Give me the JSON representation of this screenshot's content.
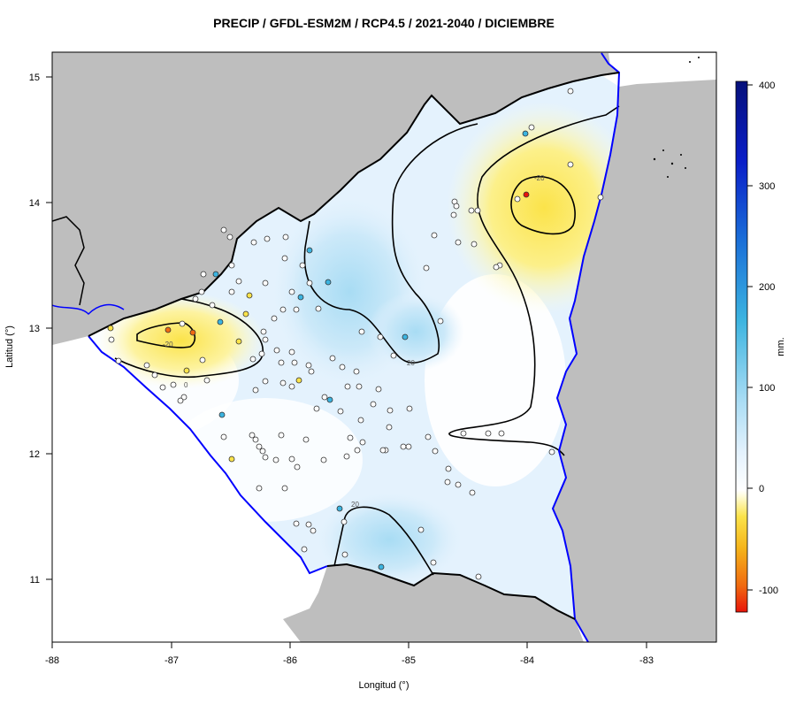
{
  "title": "PRECIP / GFDL-ESM2M / RCP4.5 / 2021-2040 / DICIEMBRE",
  "x_axis": {
    "label": "Longitud (°)",
    "ticks": [
      "-88",
      "-87",
      "-86",
      "-85",
      "-84",
      "-83"
    ]
  },
  "y_axis": {
    "label": "Latitud (°)",
    "ticks": [
      "11",
      "12",
      "13",
      "14",
      "15"
    ]
  },
  "colorbar": {
    "unit": "mm.",
    "ticks": [
      "-100",
      "0",
      "100",
      "200",
      "300",
      "400"
    ],
    "min": -120,
    "max": 400,
    "colors": [
      "#e8140a",
      "#f06a10",
      "#f5b41a",
      "#fbe34a",
      "#fffde0",
      "#ffffff",
      "#e4f2fd",
      "#a8dcf4",
      "#3cb4e0",
      "#1a6fd8",
      "#0a1ec8",
      "#06107a"
    ]
  },
  "contour_labels": [
    "-20",
    "-20",
    "20",
    "20",
    "0"
  ],
  "map_extent": {
    "lon": [
      -88,
      -82.4
    ],
    "lat": [
      10.5,
      15.2
    ]
  },
  "colors": {
    "land_outside": "#bebebe",
    "coast": "#0000ff",
    "border": "#000000",
    "sea": "#ffffff"
  }
}
